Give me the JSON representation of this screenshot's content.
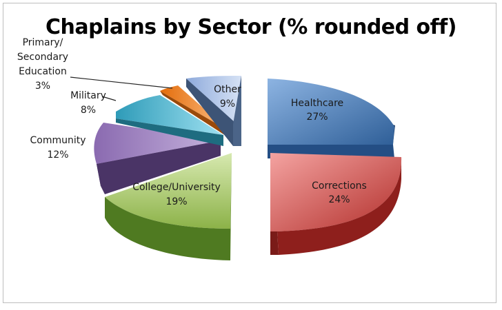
{
  "chart_data": {
    "type": "pie",
    "title": "Chaplains by Sector (% rounded off)",
    "slices": [
      {
        "label": "Healthcare",
        "value": 27,
        "value_label": "27%",
        "color": "#4a7ebb"
      },
      {
        "label": "Corrections",
        "value": 24,
        "value_label": "24%",
        "color": "#c0504d"
      },
      {
        "label": "College/University",
        "value": 19,
        "value_label": "19%",
        "color": "#9bbb59"
      },
      {
        "label": "Community",
        "value": 12,
        "value_label": "12%",
        "color": "#8064a2"
      },
      {
        "label": "Military",
        "value": 8,
        "value_label": "8%",
        "color": "#4bacc6"
      },
      {
        "label": "Primary/ Secondary Education",
        "value": 3,
        "value_label": "3%",
        "color": "#f79646"
      },
      {
        "label": "Other",
        "value": 9,
        "value_label": "9%",
        "color": "#8eaadb"
      }
    ],
    "style": "3d-exploded-pie",
    "legend": "none"
  },
  "labels": {
    "healthcare": {
      "name": "Healthcare",
      "pct": "27%"
    },
    "corrections": {
      "name": "Corrections",
      "pct": "24%"
    },
    "college": {
      "name": "College/University",
      "pct": "19%"
    },
    "community": {
      "name": "Community",
      "pct": "12%"
    },
    "military": {
      "name": "Military",
      "pct": "8%"
    },
    "primary": {
      "line1": "Primary/",
      "line2": "Secondary",
      "line3": "Education",
      "pct": "3%"
    },
    "other": {
      "name": "Other",
      "pct": "9%"
    }
  }
}
